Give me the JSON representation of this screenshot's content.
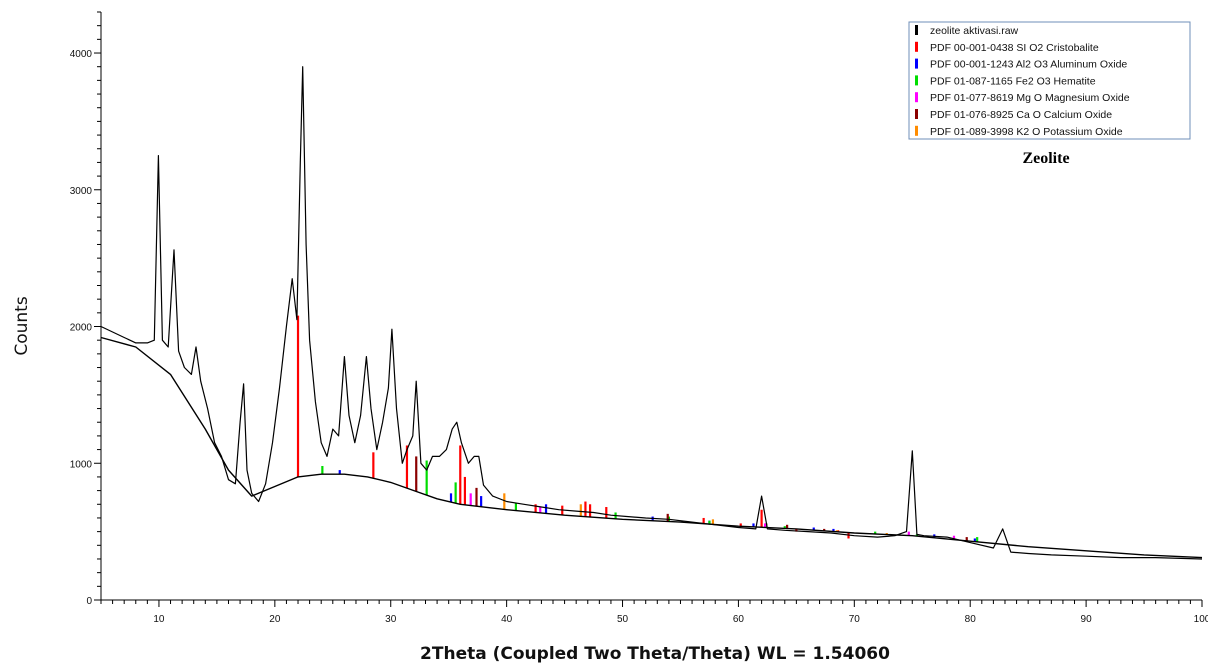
{
  "chart_data": {
    "type": "line",
    "title": "Zeolite",
    "xlabel": "2Theta (Coupled Two Theta/Theta) WL = 1.54060",
    "ylabel": "Counts",
    "xlim": [
      5,
      100
    ],
    "ylim": [
      0,
      4300
    ],
    "x_ticks": [
      10,
      20,
      30,
      40,
      50,
      60,
      70,
      80,
      90,
      100
    ],
    "y_ticks": [
      0,
      1000,
      2000,
      3000,
      4000
    ],
    "grid": false,
    "legend_position": "top-right",
    "series": [
      {
        "name": "zeolite aktivasi.raw",
        "color": "#000000",
        "x": [
          5.0,
          6.0,
          7.0,
          8.0,
          9.0,
          9.6,
          9.95,
          10.3,
          10.8,
          11.3,
          11.7,
          12.2,
          12.8,
          13.2,
          13.6,
          14.2,
          14.8,
          15.4,
          16.0,
          16.6,
          17.0,
          17.3,
          17.6,
          18.0,
          18.6,
          19.2,
          19.8,
          20.4,
          21.0,
          21.5,
          21.9,
          22.2,
          22.4,
          22.7,
          23.0,
          23.5,
          24.0,
          24.5,
          25.0,
          25.5,
          26.0,
          26.4,
          26.9,
          27.4,
          27.9,
          28.3,
          28.8,
          29.3,
          29.8,
          30.1,
          30.5,
          31.0,
          31.4,
          31.9,
          32.2,
          32.6,
          33.1,
          33.6,
          34.2,
          34.8,
          35.3,
          35.7,
          36.1,
          36.7,
          37.2,
          37.6,
          38.0,
          38.8,
          40.0,
          41.5,
          43.0,
          44.5,
          46.0,
          47.5,
          49.0,
          50.5,
          52.0,
          54.0,
          56.0,
          58.0,
          60.0,
          61.5,
          62.0,
          62.5,
          64.0,
          66.0,
          68.0,
          70.0,
          72.0,
          73.5,
          74.5,
          75.0,
          75.4,
          76.0,
          78.0,
          80.0,
          82.0,
          82.8,
          83.5,
          85.0,
          87.0,
          90.0,
          93.0,
          96.0,
          100.0
        ],
        "y": [
          2000,
          1960,
          1920,
          1880,
          1880,
          1900,
          3250,
          1900,
          1850,
          2560,
          1820,
          1700,
          1650,
          1850,
          1600,
          1400,
          1150,
          1050,
          880,
          850,
          1300,
          1580,
          950,
          780,
          720,
          850,
          1150,
          1550,
          2000,
          2350,
          2050,
          3200,
          3900,
          2600,
          1900,
          1450,
          1150,
          1050,
          1250,
          1200,
          1780,
          1350,
          1150,
          1350,
          1780,
          1400,
          1100,
          1300,
          1550,
          1980,
          1400,
          1000,
          1100,
          1200,
          1600,
          1000,
          950,
          1050,
          1050,
          1100,
          1250,
          1300,
          1150,
          1000,
          1050,
          1050,
          840,
          760,
          720,
          700,
          680,
          660,
          650,
          640,
          620,
          610,
          600,
          590,
          570,
          550,
          530,
          520,
          760,
          520,
          510,
          500,
          490,
          470,
          460,
          470,
          500,
          1090,
          480,
          470,
          460,
          420,
          380,
          520,
          350,
          340,
          330,
          320,
          310,
          310,
          300
        ]
      },
      {
        "name": "background",
        "color": "#000000",
        "x": [
          5.0,
          8.0,
          11.0,
          14.0,
          16.0,
          18.0,
          20.0,
          22.0,
          24.0,
          26.0,
          28.0,
          30.0,
          32.0,
          34.0,
          36.0,
          40.0,
          45.0,
          50.0,
          55.0,
          60.0,
          65.0,
          70.0,
          75.0,
          80.0,
          85.0,
          90.0,
          95.0,
          100.0
        ],
        "y": [
          1920,
          1850,
          1650,
          1250,
          950,
          760,
          830,
          900,
          920,
          920,
          900,
          860,
          800,
          740,
          700,
          660,
          620,
          590,
          570,
          540,
          520,
          490,
          470,
          430,
          390,
          360,
          330,
          310
        ]
      }
    ],
    "reference_patterns": [
      {
        "name": "PDF 00-001-0438 SI O2 Cristobalite",
        "color": "#ff0000",
        "x": [
          22.0,
          28.5,
          31.4,
          36.0,
          36.4,
          42.5,
          44.8,
          46.8,
          47.2,
          48.6,
          57.0,
          60.2,
          62.0,
          62.4,
          65.0,
          68.6,
          69.5
        ],
        "y": [
          2080,
          1080,
          1130,
          1130,
          900,
          700,
          690,
          720,
          700,
          680,
          600,
          560,
          660,
          560,
          500,
          510,
          450
        ]
      },
      {
        "name": "PDF 00-001-1243 Al2 O3 Aluminum Oxide",
        "color": "#0000ff",
        "x": [
          25.6,
          35.2,
          37.8,
          43.4,
          52.6,
          57.5,
          61.3,
          66.5,
          68.2,
          76.9,
          80.4
        ],
        "y": [
          950,
          780,
          760,
          700,
          610,
          580,
          560,
          530,
          520,
          480,
          450
        ]
      },
      {
        "name": "PDF 01-087-1165 Fe2 O3 Hematite",
        "color": "#00dd00",
        "x": [
          24.1,
          33.1,
          35.6,
          40.8,
          49.4,
          54.0,
          57.5,
          62.4,
          64.0,
          71.8,
          75.4,
          80.6
        ],
        "y": [
          980,
          1020,
          860,
          710,
          640,
          610,
          580,
          560,
          540,
          500,
          480,
          460
        ]
      },
      {
        "name": "PDF 01-077-8619 Mg O Magnesium Oxide",
        "color": "#ff00ff",
        "x": [
          36.9,
          42.9,
          62.3,
          74.7,
          78.6
        ],
        "y": [
          780,
          680,
          560,
          500,
          470
        ]
      },
      {
        "name": "PDF 01-076-8925 Ca O Calcium Oxide",
        "color": "#8b0000",
        "x": [
          32.2,
          37.4,
          53.9,
          64.2,
          67.4,
          79.7
        ],
        "y": [
          1050,
          820,
          630,
          550,
          520,
          460
        ]
      },
      {
        "name": "PDF 01-089-3998 K2 O Potassium Oxide",
        "color": "#ff8c00",
        "x": [
          23.9,
          39.8,
          46.4,
          57.8,
          68.5,
          72.8
        ],
        "y": [
          920,
          780,
          700,
          590,
          510,
          490
        ]
      }
    ]
  },
  "legend": {
    "items": [
      {
        "label": "zeolite aktivasi.raw",
        "color": "#000000"
      },
      {
        "label": "PDF 00-001-0438 SI O2 Cristobalite",
        "color": "#ff0000"
      },
      {
        "label": "PDF 00-001-1243 Al2 O3 Aluminum Oxide",
        "color": "#0000ff"
      },
      {
        "label": "PDF 01-087-1165 Fe2 O3 Hematite",
        "color": "#00dd00"
      },
      {
        "label": "PDF 01-077-8619 Mg O Magnesium Oxide",
        "color": "#ff00ff"
      },
      {
        "label": "PDF 01-076-8925 Ca O Calcium Oxide",
        "color": "#8b0000"
      },
      {
        "label": "PDF 01-089-3998 K2 O Potassium Oxide",
        "color": "#ff8c00"
      }
    ],
    "caption": "Zeolite"
  }
}
